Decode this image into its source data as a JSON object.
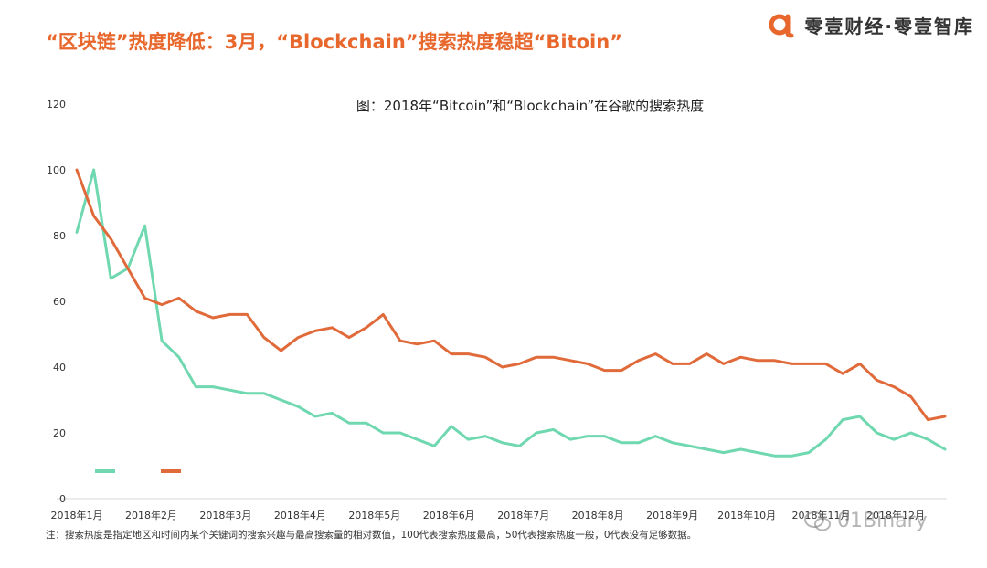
{
  "headline": "“区块链”热度降低：3月，“Blockchain”搜索热度稳超“Bitoin”",
  "brand": {
    "name": "零壹财经·零壹智库",
    "logo_icon": "alpha-logo-icon",
    "accent": "#e8672c"
  },
  "footnote": "注：搜索热度是指定地区和时间内某个关键词的搜索兴趣与最高搜索量的相对数值，100代表搜索热度最高，50代表搜索热度一般，0代表没有足够数据。",
  "watermark": {
    "text": "01Binary",
    "icon": "wechat-icon"
  },
  "chart_data": {
    "type": "line",
    "title": "图：2018年“Bitcoin”和“Blockchain”在谷歌的搜索热度",
    "xlabel": "",
    "ylabel": "",
    "ylim": [
      0,
      120
    ],
    "yticks": [
      0,
      20,
      40,
      60,
      80,
      100,
      120
    ],
    "xtick_labels": [
      "2018年1月",
      "2018年2月",
      "2018年3月",
      "2018年4月",
      "2018年5月",
      "2018年6月",
      "2018年7月",
      "2018年8月",
      "2018年9月",
      "2018年10月",
      "2018年11月",
      "2018年12月"
    ],
    "legend_placement": "bottom-left",
    "grid": false,
    "series": [
      {
        "color": "#6fd8b0",
        "values": [
          81,
          100,
          67,
          70,
          83,
          48,
          43,
          34,
          34,
          33,
          32,
          32,
          30,
          28,
          25,
          26,
          23,
          23,
          20,
          20,
          18,
          16,
          22,
          18,
          19,
          17,
          16,
          20,
          21,
          18,
          19,
          19,
          17,
          17,
          19,
          17,
          16,
          15,
          14,
          15,
          14,
          13,
          13,
          14,
          18,
          24,
          25,
          20,
          18,
          20,
          18,
          15
        ]
      },
      {
        "color": "#e06a3a",
        "values": [
          100,
          86,
          79,
          70,
          61,
          59,
          61,
          57,
          55,
          56,
          56,
          49,
          45,
          49,
          51,
          52,
          49,
          52,
          56,
          48,
          47,
          48,
          44,
          44,
          43,
          40,
          41,
          43,
          43,
          42,
          41,
          39,
          39,
          42,
          44,
          41,
          41,
          44,
          41,
          43,
          42,
          42,
          41,
          41,
          41,
          38,
          41,
          36,
          34,
          31,
          24,
          25
        ]
      }
    ]
  }
}
